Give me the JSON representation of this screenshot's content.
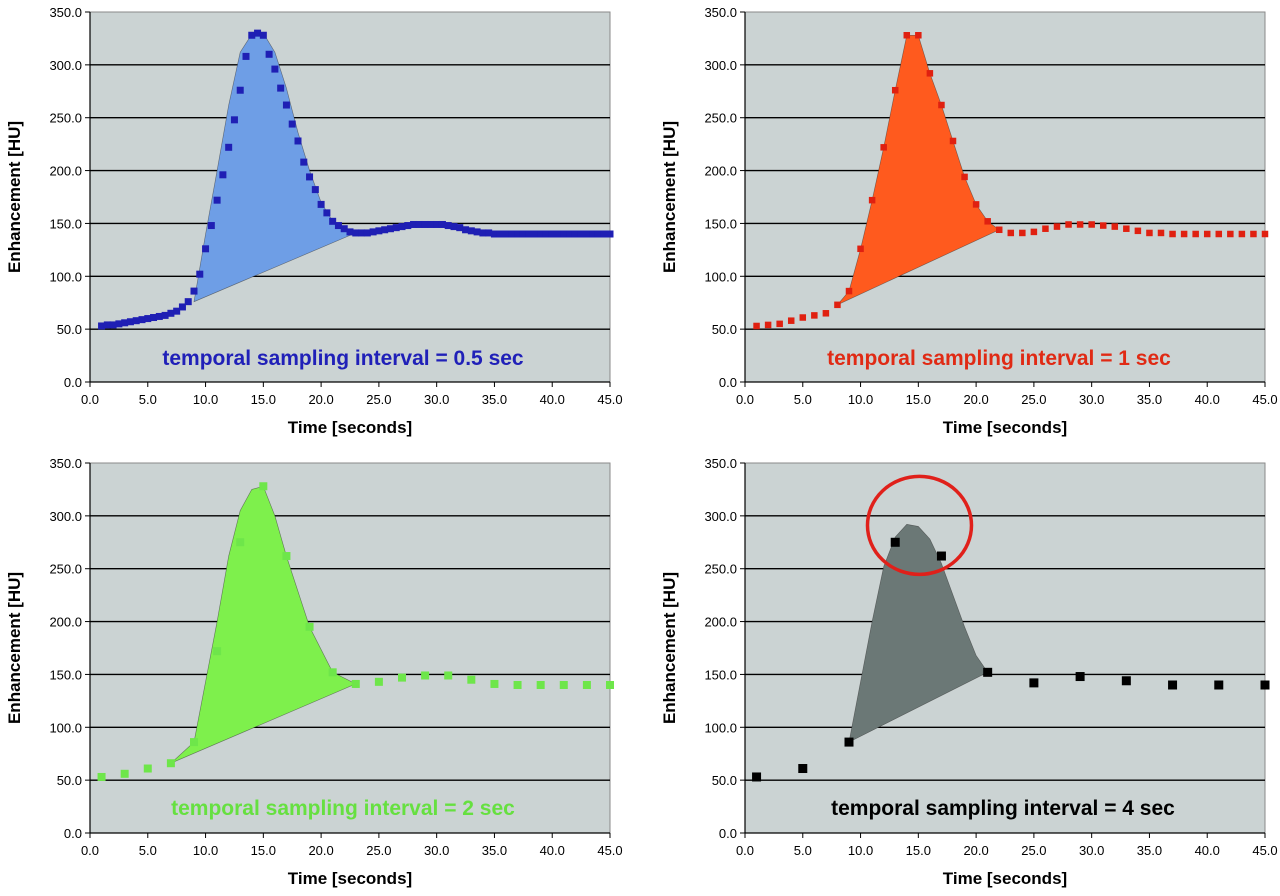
{
  "figure": {
    "chart_data": [
      {
        "type": "scatter",
        "xlabel": "Time [seconds]",
        "ylabel": "Enhancement [HU]",
        "xlim": [
          0,
          45
        ],
        "ylim": [
          0,
          350
        ],
        "x_ticks": [
          "0.0",
          "5.0",
          "10.0",
          "15.0",
          "20.0",
          "25.0",
          "30.0",
          "35.0",
          "40.0",
          "45.0"
        ],
        "y_ticks": [
          "0.0",
          "50.0",
          "100.0",
          "150.0",
          "200.0",
          "250.0",
          "300.0",
          "350.0"
        ],
        "grid": "horizontal",
        "plot_background": "#cbd3d3",
        "marker_color": "#1f1fb4",
        "fill_color": "#6e9ee6",
        "annotation": "temporal sampling interval = 0.5 sec",
        "annotation_color": "#2020b8",
        "series": [
          {
            "x": [
              1,
              1.5,
              2,
              2.5,
              3,
              3.5,
              4,
              4.5,
              5,
              5.5,
              6,
              6.5,
              7,
              7.5,
              8,
              8.5,
              9,
              9.5,
              10,
              10.5,
              11,
              11.5,
              12,
              12.5,
              13,
              13.5,
              14,
              14.5,
              15,
              15.5,
              16,
              16.5,
              17,
              17.5,
              18,
              18.5,
              19,
              19.5,
              20,
              20.5,
              21,
              21.5,
              22,
              22.5,
              23,
              23.5,
              24,
              24.5,
              25,
              25.5,
              26,
              26.5,
              27,
              27.5,
              28,
              28.5,
              29,
              29.5,
              30,
              30.5,
              31,
              31.5,
              32,
              32.5,
              33,
              33.5,
              34,
              34.5,
              35,
              35.5,
              36,
              36.5,
              37,
              37.5,
              38,
              38.5,
              39,
              39.5,
              40,
              40.5,
              41,
              41.5,
              42,
              42.5,
              43,
              43.5,
              44,
              44.5,
              45
            ],
            "y": [
              53,
              54,
              54,
              55,
              56,
              57,
              58,
              59,
              60,
              61,
              62,
              63,
              65,
              67,
              71,
              76,
              86,
              102,
              126,
              148,
              172,
              196,
              222,
              248,
              276,
              308,
              328,
              330,
              328,
              310,
              296,
              278,
              262,
              244,
              228,
              208,
              194,
              182,
              168,
              160,
              152,
              148,
              145,
              142,
              141,
              141,
              141,
              142,
              143,
              144,
              145,
              146,
              147,
              148,
              149,
              149,
              149,
              149,
              149,
              149,
              148,
              147,
              146,
              144,
              143,
              142,
              141,
              141,
              140,
              140,
              140,
              140,
              140,
              140,
              140,
              140,
              140,
              140,
              140,
              140,
              140,
              140,
              140,
              140,
              140,
              140,
              140,
              140,
              140
            ]
          }
        ],
        "fill_polygon": {
          "x": [
            9,
            10,
            11,
            12,
            13,
            14,
            15,
            16,
            17,
            18,
            19,
            20,
            21,
            22,
            23
          ],
          "y": [
            76,
            140,
            200,
            262,
            312,
            329,
            330,
            312,
            278,
            236,
            200,
            170,
            152,
            143,
            141
          ]
        }
      },
      {
        "type": "scatter",
        "xlabel": "Time [seconds]",
        "ylabel": "Enhancement [HU]",
        "xlim": [
          0,
          45
        ],
        "ylim": [
          0,
          350
        ],
        "x_ticks": [
          "0.0",
          "5.0",
          "10.0",
          "15.0",
          "20.0",
          "25.0",
          "30.0",
          "35.0",
          "40.0",
          "45.0"
        ],
        "y_ticks": [
          "0.0",
          "50.0",
          "100.0",
          "150.0",
          "200.0",
          "250.0",
          "300.0",
          "350.0"
        ],
        "grid": "horizontal",
        "plot_background": "#cbd3d3",
        "marker_color": "#e02010",
        "fill_color": "#ff5a1e",
        "annotation": "temporal sampling interval = 1 sec",
        "annotation_color": "#e02a14",
        "series": [
          {
            "x": [
              1,
              2,
              3,
              4,
              5,
              6,
              7,
              8,
              9,
              10,
              11,
              12,
              13,
              14,
              15,
              16,
              17,
              18,
              19,
              20,
              21,
              22,
              23,
              24,
              25,
              26,
              27,
              28,
              29,
              30,
              31,
              32,
              33,
              34,
              35,
              36,
              37,
              38,
              39,
              40,
              41,
              42,
              43,
              44,
              45
            ],
            "y": [
              53,
              54,
              55,
              58,
              61,
              63,
              65,
              73,
              86,
              126,
              172,
              222,
              276,
              328,
              328,
              292,
              262,
              228,
              194,
              168,
              152,
              144,
              141,
              141,
              142,
              145,
              147,
              149,
              149,
              149,
              148,
              147,
              145,
              143,
              141,
              141,
              140,
              140,
              140,
              140,
              140,
              140,
              140,
              140,
              140
            ]
          }
        ],
        "fill_polygon": {
          "x": [
            8,
            9,
            10,
            11,
            12,
            13,
            14,
            15,
            16,
            17,
            18,
            19,
            20,
            21,
            22
          ],
          "y": [
            73,
            86,
            126,
            172,
            222,
            276,
            328,
            328,
            292,
            262,
            228,
            194,
            168,
            152,
            144
          ]
        }
      },
      {
        "type": "scatter",
        "xlabel": "Time [seconds]",
        "ylabel": "Enhancement [HU]",
        "xlim": [
          0,
          45
        ],
        "ylim": [
          0,
          350
        ],
        "x_ticks": [
          "0.0",
          "5.0",
          "10.0",
          "15.0",
          "20.0",
          "25.0",
          "30.0",
          "35.0",
          "40.0",
          "45.0"
        ],
        "y_ticks": [
          "0.0",
          "50.0",
          "100.0",
          "150.0",
          "200.0",
          "250.0",
          "300.0",
          "350.0"
        ],
        "grid": "horizontal",
        "plot_background": "#cbd3d3",
        "marker_color": "#6ee64a",
        "fill_color": "#7ef04c",
        "annotation": "temporal sampling interval = 2 sec",
        "annotation_color": "#66e040",
        "series": [
          {
            "x": [
              1,
              3,
              5,
              7,
              9,
              11,
              13,
              15,
              17,
              19,
              21,
              23,
              25,
              27,
              29,
              31,
              33,
              35,
              37,
              39,
              41,
              43,
              45
            ],
            "y": [
              53,
              56,
              61,
              66,
              86,
              172,
              275,
              328,
              262,
              195,
              152,
              141,
              143,
              147,
              149,
              149,
              145,
              141,
              140,
              140,
              140,
              140,
              140
            ]
          }
        ],
        "fill_polygon": {
          "x": [
            7,
            9,
            11,
            12,
            13,
            14,
            15,
            16,
            17,
            19,
            21,
            23
          ],
          "y": [
            66,
            86,
            200,
            262,
            305,
            325,
            328,
            300,
            262,
            195,
            152,
            141
          ]
        }
      },
      {
        "type": "scatter",
        "xlabel": "Time [seconds]",
        "ylabel": "Enhancement [HU]",
        "xlim": [
          0,
          45
        ],
        "ylim": [
          0,
          350
        ],
        "x_ticks": [
          "0.0",
          "5.0",
          "10.0",
          "15.0",
          "20.0",
          "25.0",
          "30.0",
          "35.0",
          "40.0",
          "45.0"
        ],
        "y_ticks": [
          "0.0",
          "50.0",
          "100.0",
          "150.0",
          "200.0",
          "250.0",
          "300.0",
          "350.0"
        ],
        "grid": "horizontal",
        "plot_background": "#cbd3d3",
        "marker_color": "#000000",
        "fill_color": "#6b7876",
        "annotation": "temporal sampling interval = 4 sec",
        "annotation_color": "#000000",
        "highlight_circle_color": "#e0201a",
        "series": [
          {
            "x": [
              1,
              5,
              9,
              13,
              17,
              21,
              25,
              29,
              33,
              37,
              41,
              45
            ],
            "y": [
              53,
              61,
              86,
              275,
              262,
              152,
              142,
              148,
              144,
              140,
              140,
              140
            ]
          }
        ],
        "fill_polygon": {
          "x": [
            9,
            11,
            12,
            13,
            14,
            15,
            16,
            17,
            18,
            19,
            20,
            21
          ],
          "y": [
            86,
            200,
            252,
            280,
            292,
            290,
            278,
            255,
            225,
            195,
            168,
            152
          ]
        }
      }
    ]
  }
}
